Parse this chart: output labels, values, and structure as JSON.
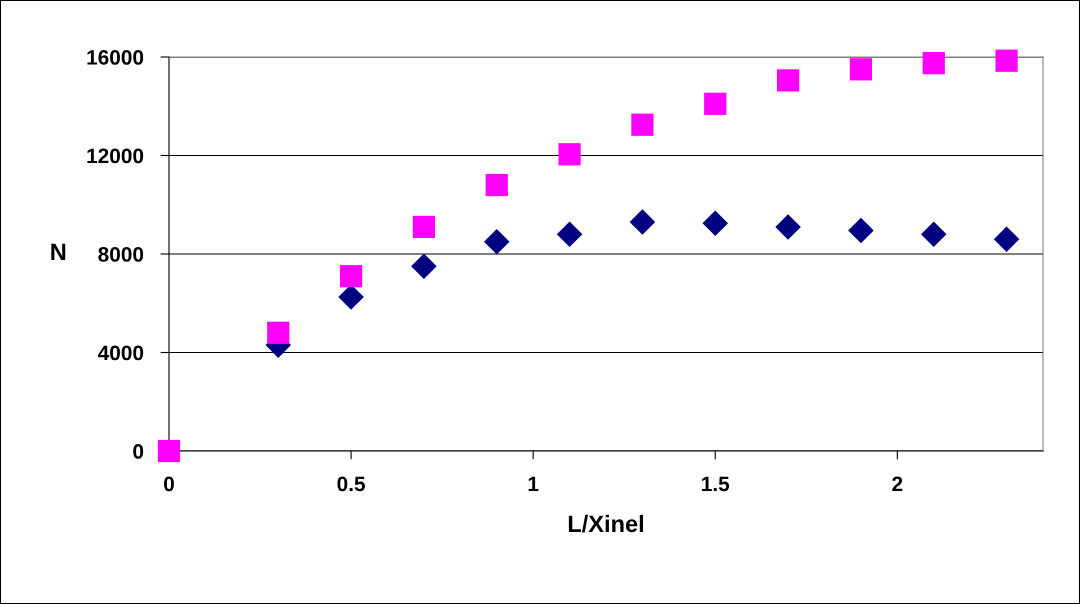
{
  "chart_data": {
    "type": "scatter",
    "xlabel": "L/Xinel",
    "ylabel": "N",
    "x": [
      0,
      0.3,
      0.5,
      0.7,
      0.9,
      1.1,
      1.3,
      1.5,
      1.7,
      1.9,
      2.1,
      2.3
    ],
    "series": [
      {
        "color": "#000080",
        "marker": "diamond",
        "values": [
          null,
          4300,
          6250,
          7500,
          8500,
          8800,
          9300,
          9250,
          9100,
          8950,
          8800,
          8600
        ]
      },
      {
        "color": "#ff00ff",
        "marker": "square",
        "values": [
          0,
          4800,
          7100,
          9100,
          10800,
          12050,
          13250,
          14100,
          15050,
          15500,
          15750,
          15850
        ]
      }
    ],
    "xlim": [
      0,
      2.4
    ],
    "xticks": [
      0,
      0.5,
      1,
      1.5,
      2
    ],
    "ylim": [
      0,
      16000
    ],
    "yticks": [
      0,
      4000,
      8000,
      12000,
      16000
    ],
    "grid": "y",
    "legend": false
  }
}
